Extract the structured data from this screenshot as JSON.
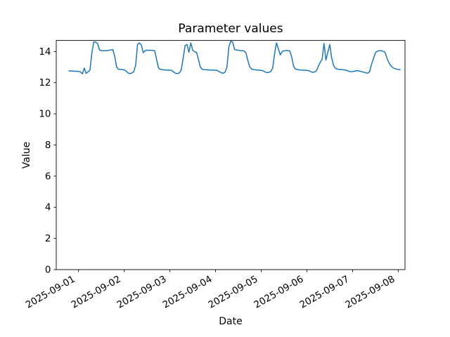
{
  "figure": {
    "background": "#ffffff",
    "frame_color": "#000000"
  },
  "chart_data": {
    "type": "line",
    "title": "Parameter values",
    "xlabel": "Date",
    "ylabel": "Value",
    "line_color": "#1f77b4",
    "line_width": 1.5,
    "grid": false,
    "legend": null,
    "x_start": "2025-08-31 19:00",
    "x_interval_hours": 1,
    "x_range_hours": [
      -6.71,
      176.55
    ],
    "y_range": [
      0,
      14.71
    ],
    "x_tick_rotation_deg": 30,
    "x_ticks": [
      {
        "hour_offset": 5,
        "label": "2025-09-01"
      },
      {
        "hour_offset": 29,
        "label": "2025-09-02"
      },
      {
        "hour_offset": 53,
        "label": "2025-09-03"
      },
      {
        "hour_offset": 77,
        "label": "2025-09-04"
      },
      {
        "hour_offset": 101,
        "label": "2025-09-05"
      },
      {
        "hour_offset": 125,
        "label": "2025-09-06"
      },
      {
        "hour_offset": 149,
        "label": "2025-09-07"
      },
      {
        "hour_offset": 173,
        "label": "2025-09-08"
      }
    ],
    "y_ticks": [
      0,
      2,
      4,
      6,
      8,
      10,
      12,
      14
    ],
    "values": [
      12.76,
      12.75,
      12.74,
      12.73,
      12.73,
      12.72,
      12.7,
      12.56,
      12.93,
      12.6,
      12.7,
      12.8,
      13.9,
      14.62,
      14.6,
      14.52,
      14.1,
      14.06,
      14.05,
      14.05,
      14.06,
      14.08,
      14.1,
      14.12,
      13.7,
      13.0,
      12.86,
      12.85,
      12.84,
      12.82,
      12.75,
      12.62,
      12.58,
      12.62,
      12.7,
      13.1,
      14.45,
      14.55,
      14.42,
      13.92,
      14.06,
      14.08,
      14.08,
      14.08,
      14.07,
      14.05,
      13.5,
      12.95,
      12.85,
      12.83,
      12.82,
      12.81,
      12.8,
      12.8,
      12.78,
      12.68,
      12.6,
      12.58,
      12.63,
      12.82,
      13.6,
      14.38,
      14.45,
      13.95,
      14.55,
      14.08,
      13.98,
      13.95,
      13.5,
      13.0,
      12.86,
      12.84,
      12.83,
      12.82,
      12.81,
      12.8,
      12.8,
      12.8,
      12.78,
      12.7,
      12.64,
      12.6,
      12.68,
      13.0,
      14.3,
      14.66,
      14.6,
      14.12,
      14.1,
      14.08,
      14.06,
      14.05,
      14.04,
      13.9,
      13.4,
      13.0,
      12.87,
      12.84,
      12.82,
      12.81,
      12.8,
      12.79,
      12.76,
      12.69,
      12.64,
      12.66,
      12.72,
      12.92,
      13.85,
      14.55,
      14.18,
      13.78,
      14.0,
      14.05,
      14.06,
      14.06,
      14.04,
      13.65,
      13.05,
      12.87,
      12.84,
      12.82,
      12.81,
      12.8,
      12.8,
      12.79,
      12.77,
      12.71,
      12.66,
      12.69,
      12.76,
      13.05,
      13.3,
      13.5,
      14.52,
      13.45,
      13.95,
      14.45,
      13.6,
      13.1,
      12.92,
      12.87,
      12.85,
      12.84,
      12.83,
      12.81,
      12.78,
      12.73,
      12.7,
      12.71,
      12.74,
      12.77,
      12.76,
      12.73,
      12.7,
      12.67,
      12.63,
      12.61,
      12.72,
      13.2,
      13.55,
      13.92,
      14.02,
      14.05,
      14.05,
      14.02,
      13.96,
      13.6,
      13.3,
      13.1,
      12.98,
      12.91,
      12.87,
      12.85,
      12.84
    ]
  }
}
